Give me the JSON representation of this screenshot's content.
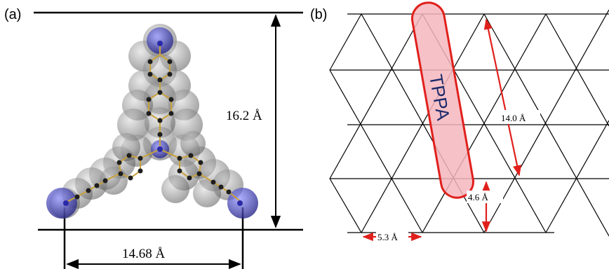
{
  "panels": {
    "a": {
      "label": "(a)",
      "height_label": "16.2 Å",
      "width_label": "14.68 Å"
    },
    "b": {
      "label": "(b)",
      "molecule_label": "TPPA",
      "length_label": "14.0 Å",
      "width_label": "4.6 Å",
      "lattice_label": "5.3 Å"
    }
  },
  "colors": {
    "line": "#000000",
    "arrow_red": "#e0201c",
    "tppa_fill": "#f4b6bd",
    "tppa_stroke": "#e0201c",
    "tppa_text": "#1b2a6b",
    "nitrogen": "#3a3ab0",
    "bond": "#c9a23a",
    "atom_dark": "#1e1e1e",
    "vdw_shell": "#7a7a7a"
  }
}
